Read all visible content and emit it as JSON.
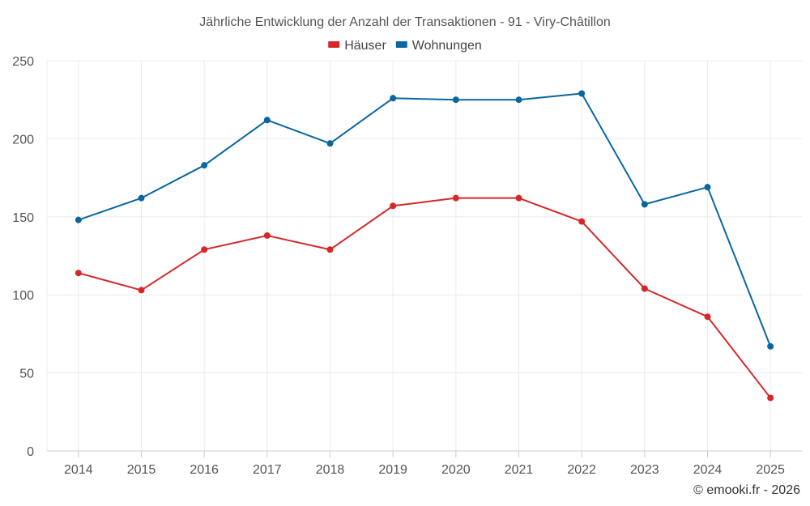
{
  "chart_data": {
    "type": "line",
    "title": "Jährliche Entwicklung der Anzahl der Transaktionen - 91 - Viry-Châtillon",
    "categories": [
      "2014",
      "2015",
      "2016",
      "2017",
      "2018",
      "2019",
      "2020",
      "2021",
      "2022",
      "2023",
      "2024",
      "2025"
    ],
    "series": [
      {
        "name": "Häuser",
        "color": "#d62728",
        "values": [
          114,
          103,
          129,
          138,
          129,
          157,
          162,
          162,
          147,
          104,
          86,
          34
        ]
      },
      {
        "name": "Wohnungen",
        "color": "#0a66a0",
        "values": [
          148,
          162,
          183,
          212,
          197,
          226,
          225,
          225,
          229,
          158,
          169,
          67
        ]
      }
    ],
    "ylim": [
      0,
      250
    ],
    "yticks": [
      0,
      50,
      100,
      150,
      200,
      250
    ],
    "xlabel": "",
    "ylabel": "",
    "grid": true,
    "legend": "top-center"
  },
  "credit": "© emooki.fr - 2026"
}
